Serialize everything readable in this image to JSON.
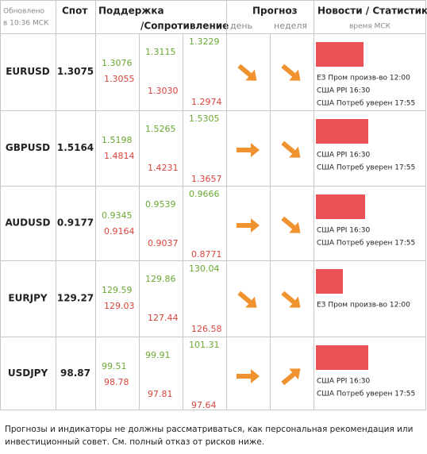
{
  "header": {
    "updated": "Обновлено",
    "updated_time": "в 10:36 МСК",
    "spot": "Спот",
    "support": "Поддержка",
    "resistance": "/Сопротивление",
    "forecast": "Прогноз",
    "day": "день",
    "week": "неделя",
    "news": "Новости / Статистика",
    "news_time": "время МСК"
  },
  "rows": [
    {
      "pair": "EURUSD",
      "spot": "1.3075",
      "levels": [
        [
          "1.3076",
          "1.3055"
        ],
        [
          "1.3115",
          "1.3030"
        ],
        [
          "1.3229",
          "1.2974"
        ]
      ],
      "news": [
        "ЕЗ Пром произв-во 12:00",
        "США PPI 16:30",
        "США Потреб уверен 17:55"
      ]
    },
    {
      "pair": "GBPUSD",
      "spot": "1.5164",
      "levels": [
        [
          "1.5198",
          "1.4814"
        ],
        [
          "1.5265",
          "1.4231"
        ],
        [
          "1.5305",
          "1.3657"
        ]
      ],
      "news": [
        "США PPI 16:30",
        "США Потреб уверен 17:55"
      ]
    },
    {
      "pair": "AUDUSD",
      "spot": "0.9177",
      "levels": [
        [
          "0.9345",
          "0.9164"
        ],
        [
          "0.9539",
          "0.9037"
        ],
        [
          "0.9666",
          "0.8771"
        ]
      ],
      "news": [
        "США PPI 16:30",
        "США Потреб уверен 17:55"
      ]
    },
    {
      "pair": "EURJPY",
      "spot": "129.27",
      "levels": [
        [
          "129.59",
          "129.03"
        ],
        [
          "129.86",
          "127.44"
        ],
        [
          "130.04",
          "126.58"
        ]
      ],
      "news": [
        "ЕЗ Пром произв-во 12:00"
      ]
    },
    {
      "pair": "USDJPY",
      "spot": "98.87",
      "levels": [
        [
          "99.51",
          "98.78"
        ],
        [
          "99.91",
          "97.81"
        ],
        [
          "101.31",
          "97.64"
        ]
      ],
      "news": [
        "США PPI 16:30",
        "США Потреб уверен 17:55"
      ]
    }
  ],
  "footer": [
    "Прогнозы и индикаторы не должны рассматриваться, как персональная рекомендация или",
    "инвестиционный совет. См. полный отказ от рисков ниже."
  ]
}
